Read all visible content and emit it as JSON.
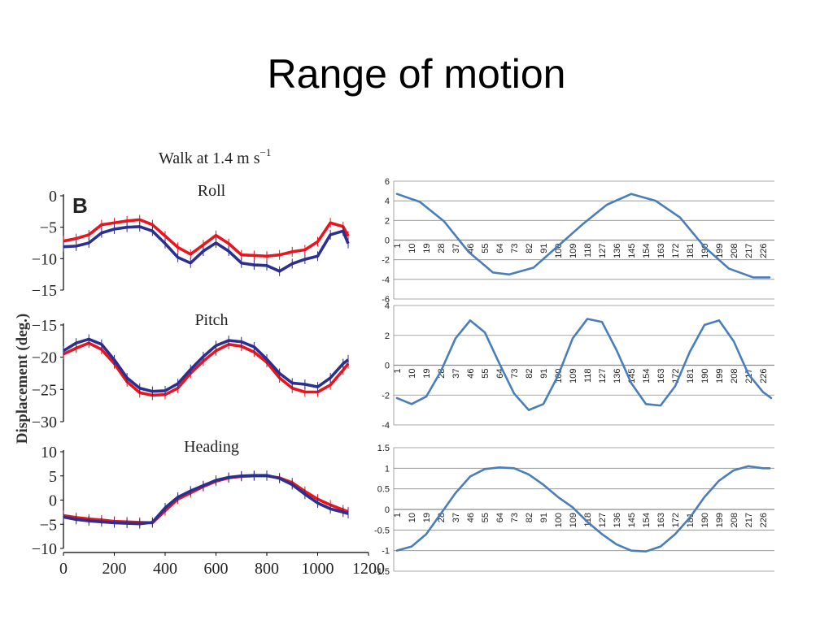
{
  "slide": {
    "title": "Range of motion"
  },
  "chart_data": [
    {
      "type": "line",
      "title": "Walk at 1.4 m s",
      "title_superscript": "−1",
      "panel_label": "B",
      "ylabel": "Displacement (deg.)",
      "x_ticks": [
        "0",
        "200",
        "400",
        "600",
        "800",
        "1000",
        "1200"
      ],
      "xlim": [
        0,
        1200
      ],
      "colors": {
        "red": "#e8141e",
        "blue": "#2b2f8f"
      },
      "panels": [
        {
          "name": "Roll",
          "ylim": [
            -15,
            0
          ],
          "y_ticks": [
            "0",
            "−5",
            "−10",
            "−15"
          ],
          "y_tick_values": [
            0,
            -5,
            -10,
            -15
          ],
          "x": [
            0,
            50,
            100,
            150,
            200,
            250,
            300,
            350,
            400,
            450,
            500,
            550,
            600,
            650,
            700,
            750,
            800,
            850,
            900,
            950,
            1000,
            1050,
            1100,
            1120
          ],
          "series": [
            {
              "color": "red",
              "values": [
                -7.2,
                -6.8,
                -6.2,
                -4.6,
                -4.3,
                -4.0,
                -3.8,
                -4.6,
                -6.4,
                -8.2,
                -9.3,
                -7.8,
                -6.3,
                -7.6,
                -9.4,
                -9.5,
                -9.6,
                -9.4,
                -8.9,
                -8.6,
                -7.3,
                -4.3,
                -4.9,
                -6.4
              ]
            },
            {
              "color": "blue",
              "values": [
                -8.1,
                -8.0,
                -7.5,
                -5.9,
                -5.3,
                -5.0,
                -4.9,
                -5.6,
                -7.6,
                -9.8,
                -10.7,
                -8.8,
                -7.5,
                -8.8,
                -10.7,
                -11.0,
                -11.1,
                -12.0,
                -10.8,
                -10.1,
                -9.6,
                -6.2,
                -5.6,
                -7.6
              ]
            }
          ]
        },
        {
          "name": "Pitch",
          "ylim": [
            -30,
            -15
          ],
          "y_ticks": [
            "−15",
            "−20",
            "−25",
            "−30"
          ],
          "y_tick_values": [
            -15,
            -20,
            -25,
            -30
          ],
          "x": [
            0,
            50,
            100,
            150,
            200,
            250,
            300,
            350,
            400,
            450,
            500,
            550,
            600,
            650,
            700,
            750,
            800,
            850,
            900,
            950,
            1000,
            1050,
            1100,
            1120
          ],
          "series": [
            {
              "color": "red",
              "values": [
                -19.5,
                -18.6,
                -17.8,
                -18.8,
                -21.0,
                -23.8,
                -25.5,
                -25.9,
                -25.8,
                -24.8,
                -22.5,
                -20.6,
                -19.0,
                -18.0,
                -18.3,
                -19.2,
                -20.8,
                -23.2,
                -24.8,
                -25.4,
                -25.4,
                -24.3,
                -22.0,
                -21.0
              ]
            },
            {
              "color": "blue",
              "values": [
                -19.0,
                -17.8,
                -17.2,
                -18.0,
                -20.4,
                -23.2,
                -24.8,
                -25.3,
                -25.2,
                -24.1,
                -21.9,
                -19.9,
                -18.2,
                -17.4,
                -17.6,
                -18.4,
                -20.3,
                -22.5,
                -24.0,
                -24.2,
                -24.6,
                -23.2,
                -21.0,
                -20.4
              ]
            }
          ]
        },
        {
          "name": "Heading",
          "ylim": [
            -10,
            10
          ],
          "y_ticks": [
            "10",
            "5",
            "0",
            "−5",
            "−10"
          ],
          "y_tick_values": [
            10,
            5,
            0,
            -5,
            -10
          ],
          "x": [
            0,
            50,
            100,
            150,
            200,
            250,
            300,
            350,
            400,
            450,
            500,
            550,
            600,
            650,
            700,
            750,
            800,
            850,
            900,
            950,
            1000,
            1050,
            1100,
            1120
          ],
          "series": [
            {
              "color": "red",
              "values": [
                -3.2,
                -3.6,
                -3.9,
                -4.1,
                -4.4,
                -4.5,
                -4.6,
                -4.7,
                -2.2,
                0.2,
                1.5,
                2.8,
                3.9,
                4.6,
                4.9,
                5.0,
                5.0,
                4.6,
                3.6,
                1.8,
                0.2,
                -1.0,
                -2.0,
                -2.4
              ]
            },
            {
              "color": "blue",
              "values": [
                -3.5,
                -4.0,
                -4.3,
                -4.5,
                -4.7,
                -4.8,
                -4.9,
                -4.6,
                -1.6,
                0.6,
                1.9,
                3.0,
                4.1,
                4.7,
                5.0,
                5.1,
                5.1,
                4.5,
                3.2,
                1.2,
                -0.6,
                -1.8,
                -2.5,
                -2.8
              ]
            }
          ]
        }
      ]
    },
    {
      "type": "line",
      "category_labels": [
        "1",
        "10",
        "19",
        "28",
        "37",
        "46",
        "55",
        "64",
        "73",
        "82",
        "91",
        "100",
        "109",
        "118",
        "127",
        "136",
        "145",
        "154",
        "163",
        "172",
        "181",
        "190",
        "199",
        "208",
        "217",
        "226"
      ],
      "color": "#4a7ebb",
      "panels": [
        {
          "ylim": [
            -6,
            6
          ],
          "y_ticks": [
            "6",
            "4",
            "2",
            "0",
            "-2",
            "-4",
            "-6"
          ],
          "y_tick_values": [
            6,
            4,
            2,
            0,
            -2,
            -4,
            -6
          ],
          "x": [
            1,
            15,
            30,
            45,
            60,
            70,
            85,
            100,
            115,
            130,
            145,
            160,
            175,
            190,
            205,
            220,
            230
          ],
          "values": [
            4.7,
            3.9,
            1.9,
            -1.2,
            -3.3,
            -3.5,
            -2.8,
            -0.6,
            1.6,
            3.6,
            4.7,
            4.0,
            2.3,
            -0.7,
            -2.9,
            -3.8,
            -3.8
          ]
        },
        {
          "ylim": [
            -4,
            4
          ],
          "y_ticks": [
            "4",
            "2",
            "0",
            "-2",
            "-4"
          ],
          "y_tick_values": [
            4,
            2,
            0,
            -2,
            -4
          ],
          "x": [
            1,
            10,
            19,
            28,
            37,
            46,
            55,
            64,
            73,
            82,
            91,
            100,
            109,
            118,
            127,
            136,
            145,
            154,
            163,
            172,
            181,
            190,
            199,
            208,
            217,
            226,
            231
          ],
          "values": [
            -2.2,
            -2.6,
            -2.1,
            -0.4,
            1.8,
            3.0,
            2.2,
            0.1,
            -1.9,
            -3.0,
            -2.6,
            -0.7,
            1.8,
            3.1,
            2.9,
            1.0,
            -1.2,
            -2.6,
            -2.7,
            -1.4,
            0.9,
            2.7,
            3.0,
            1.6,
            -0.6,
            -1.8,
            -2.2
          ]
        },
        {
          "ylim": [
            -1.5,
            1.5
          ],
          "y_ticks": [
            "1.5",
            "1",
            "0.5",
            "0",
            "-0.5",
            "-1",
            "-1.5"
          ],
          "y_tick_values": [
            1.5,
            1,
            0.5,
            0,
            -0.5,
            -1,
            -1.5
          ],
          "x": [
            1,
            10,
            19,
            28,
            37,
            46,
            55,
            64,
            73,
            82,
            91,
            100,
            109,
            118,
            127,
            136,
            145,
            154,
            163,
            172,
            181,
            190,
            199,
            208,
            217,
            226,
            230
          ],
          "values": [
            -1.0,
            -0.9,
            -0.6,
            -0.1,
            0.4,
            0.8,
            0.98,
            1.02,
            1.0,
            0.85,
            0.6,
            0.3,
            0.05,
            -0.3,
            -0.6,
            -0.85,
            -1.0,
            -1.02,
            -0.9,
            -0.6,
            -0.2,
            0.3,
            0.7,
            0.95,
            1.05,
            1.0,
            1.0
          ]
        }
      ]
    }
  ]
}
